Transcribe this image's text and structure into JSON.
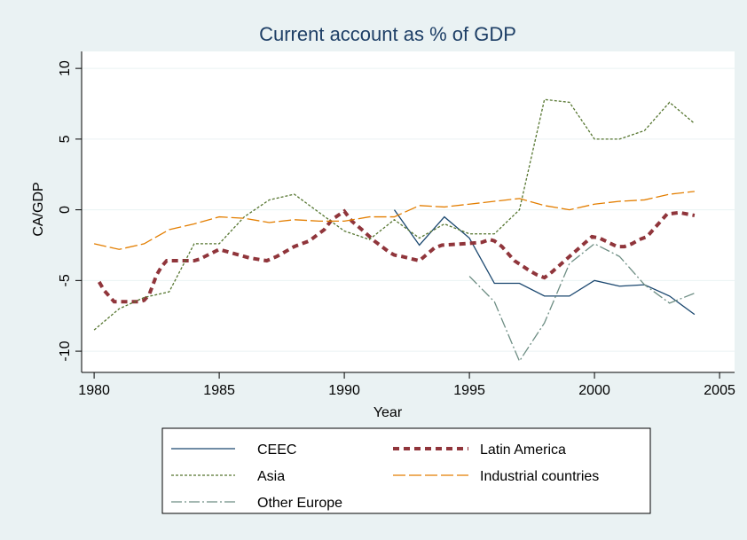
{
  "chart_data": {
    "type": "line",
    "title": "Current account as % of GDP",
    "x_label": "Year",
    "y_label": "CA/GDP",
    "xlim": [
      1979.5,
      2005.6
    ],
    "ylim": [
      -11.5,
      11.2
    ],
    "xticks": [
      1980,
      1985,
      1990,
      1995,
      2000,
      2005
    ],
    "yticks": [
      10,
      5,
      0,
      -5,
      -10
    ],
    "grid": true,
    "legend": "bottom",
    "series": [
      {
        "name": "CEEC",
        "color": "#1a476f",
        "dash": "solid",
        "x": [
          1992,
          1993,
          1994,
          1995,
          1996,
          1997,
          1998,
          1999,
          2000,
          2001,
          2002,
          2003,
          2004
        ],
        "values": [
          0,
          -2.5,
          -0.5,
          -2,
          -5.2,
          -5.2,
          -6.1,
          -6.1,
          -5,
          -5.4,
          -5.3,
          -6.1,
          -7.4
        ]
      },
      {
        "name": "Latin America",
        "color": "#90353b",
        "dash": "shortdash",
        "x": [
          1980.2,
          1980.4,
          1980.6,
          1980.8,
          1981.8,
          1982,
          1982.2,
          1982.5,
          1982.7,
          1982.9,
          1983.1,
          1983.3,
          1984,
          1984.2,
          1985,
          1986.2,
          1986.9,
          1987.3,
          1987.6,
          1988,
          1988.6,
          1989.2,
          1989.5,
          1990,
          1990.3,
          1990.7,
          1991.2,
          1991.5,
          1991.8,
          1992,
          1992.3,
          1993,
          1993.6,
          1993.9,
          1994.8,
          1995.5,
          1995.8,
          1996,
          1996.3,
          1996.6,
          1996.8,
          1997.4,
          1997.7,
          1998,
          1998.3,
          1999.9,
          2000.2,
          2000.9,
          2001.2,
          2001.5,
          2001.8,
          2002.1,
          2002.7,
          2002.9,
          2003.4,
          2003.7,
          2004
        ],
        "values": [
          -5.1,
          -5.7,
          -6.1,
          -6.5,
          -6.5,
          -6.4,
          -6,
          -4.6,
          -4,
          -3.6,
          -3.6,
          -3.6,
          -3.6,
          -3.5,
          -2.8,
          -3.4,
          -3.6,
          -3.3,
          -3,
          -2.6,
          -2.2,
          -1.4,
          -0.7,
          -0.1,
          -0.8,
          -1.4,
          -2.2,
          -2.6,
          -3,
          -3.2,
          -3.3,
          -3.6,
          -2.7,
          -2.5,
          -2.4,
          -2.3,
          -2.1,
          -2.2,
          -2.6,
          -3.2,
          -3.6,
          -4.3,
          -4.6,
          -4.8,
          -4.4,
          -1.9,
          -2,
          -2.6,
          -2.6,
          -2.4,
          -2.1,
          -1.9,
          -0.7,
          -0.3,
          -0.2,
          -0.3,
          -0.4
        ]
      },
      {
        "name": "Asia",
        "color": "#55752f",
        "dash": "dash",
        "x": [
          1980,
          1981,
          1982,
          1983,
          1984,
          1985,
          1986,
          1987,
          1988,
          1989,
          1990,
          1991,
          1992,
          1993,
          1994,
          1995,
          1996,
          1997,
          1998,
          1999,
          2000,
          2001,
          2002,
          2003,
          2004
        ],
        "values": [
          -8.5,
          -7,
          -6.2,
          -5.8,
          -2.4,
          -2.4,
          -0.5,
          0.7,
          1.1,
          -0.2,
          -1.5,
          -2.1,
          -0.7,
          -2,
          -1,
          -1.7,
          -1.7,
          0,
          7.8,
          7.6,
          5,
          5,
          5.6,
          7.6,
          6.1
        ]
      },
      {
        "name": "Industrial countries",
        "color": "#e37e00",
        "dash": "longdash",
        "x": [
          1980,
          1981,
          1982,
          1983,
          1984,
          1985,
          1986,
          1987,
          1988,
          1989,
          1990,
          1991,
          1992,
          1993,
          1994,
          1995,
          1996,
          1997,
          1998,
          1999,
          2000,
          2001,
          2002,
          2003,
          2004
        ],
        "values": [
          -2.4,
          -2.8,
          -2.4,
          -1.4,
          -1,
          -0.5,
          -0.6,
          -0.9,
          -0.7,
          -0.8,
          -0.8,
          -0.5,
          -0.5,
          0.3,
          0.2,
          0.4,
          0.6,
          0.8,
          0.3,
          0,
          0.4,
          0.6,
          0.7,
          1.1,
          1.3
        ]
      },
      {
        "name": "Other Europe",
        "color": "#6e8e84",
        "dash": "dashdot",
        "x": [
          1995,
          1996,
          1997,
          1998,
          1999,
          2000,
          2001,
          2002,
          2003,
          2004
        ],
        "values": [
          -4.7,
          -6.5,
          -10.7,
          -8,
          -3.8,
          -2.4,
          -3.3,
          -5.3,
          -6.6,
          -5.9
        ]
      }
    ]
  }
}
